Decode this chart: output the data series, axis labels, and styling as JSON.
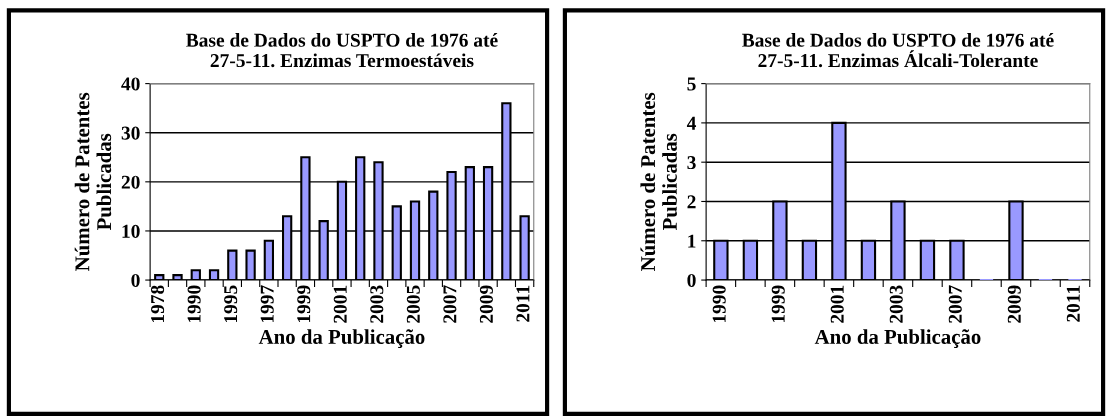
{
  "chart_data": [
    {
      "type": "bar",
      "title": "Base de Dados do USPTO de 1976 até\n27-5-11. Enzimas Termoestáveis",
      "xlabel": "Ano da Publicação",
      "ylabel": "Número de Patentes\nPublicadas",
      "categories": [
        "1978",
        null,
        "1990",
        null,
        "1995",
        null,
        "1997",
        null,
        "1999",
        null,
        "2001",
        null,
        "2003",
        null,
        "2005",
        null,
        "2007",
        null,
        "2009",
        null,
        "2011"
      ],
      "series": [
        {
          "color": "#9999ff",
          "values": [
            1,
            1,
            2,
            2,
            6,
            6,
            8,
            13,
            25,
            12,
            20,
            25,
            24,
            15,
            16,
            18,
            22,
            23,
            23,
            36,
            13
          ]
        }
      ],
      "ylim": [
        0,
        40
      ],
      "yticks": [
        0,
        10,
        20,
        30,
        40
      ],
      "grid": "y",
      "legend": false
    },
    {
      "type": "bar",
      "title": "Base de Dados do USPTO de 1976 até\n27-5-11. Enzimas Álcali-Tolerante",
      "xlabel": "Ano da Publicação",
      "ylabel": "Número de Patentes\nPublicadas",
      "categories": [
        "1990",
        null,
        "1999",
        null,
        "2001",
        null,
        "2003",
        null,
        "2007",
        null,
        "2009",
        null,
        "2011"
      ],
      "series": [
        {
          "color": "#9999ff",
          "values": [
            1,
            1,
            2,
            1,
            4,
            1,
            2,
            1,
            1,
            0,
            2,
            0,
            0
          ]
        }
      ],
      "ylim": [
        0,
        5
      ],
      "yticks": [
        0,
        1,
        2,
        3,
        4,
        5
      ],
      "grid": "y",
      "legend": false
    }
  ]
}
